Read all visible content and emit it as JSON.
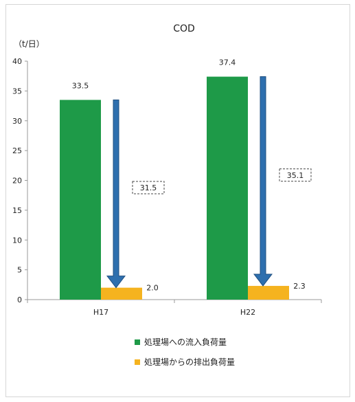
{
  "chart_data": {
    "type": "bar",
    "title": "COD",
    "ylabel": "（t/日）",
    "xlabel": "",
    "categories": [
      "H17",
      "H22"
    ],
    "series": [
      {
        "name": "処理場への流入負荷量",
        "color": "#1e9a48",
        "values": [
          33.5,
          37.4
        ],
        "labels": [
          "33.5",
          "37.4"
        ]
      },
      {
        "name": "処理場からの排出負荷量",
        "color": "#f5b31f",
        "values": [
          2.0,
          2.3
        ],
        "labels": [
          "2.0",
          "2.3"
        ]
      }
    ],
    "reductions": {
      "color": "#2e6fae",
      "values": [
        31.5,
        35.1
      ],
      "labels": [
        "31.5",
        "35.1"
      ]
    },
    "ylim": [
      0,
      40
    ],
    "yticks": [
      "0",
      "5",
      "10",
      "15",
      "20",
      "25",
      "30",
      "35",
      "40"
    ],
    "grid": false,
    "legend_position": "bottom"
  }
}
